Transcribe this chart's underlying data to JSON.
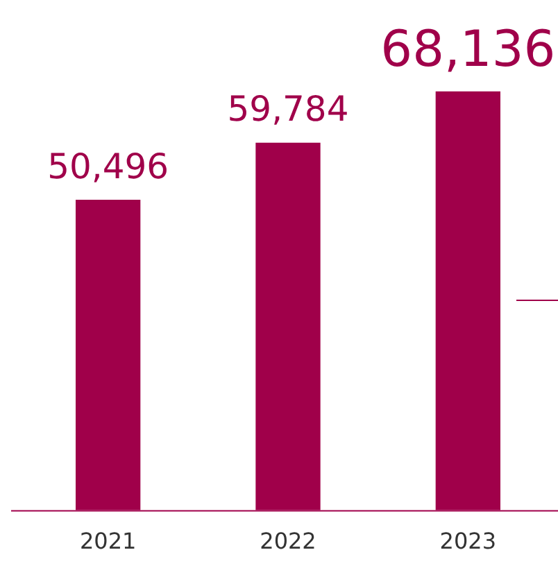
{
  "chart_data": {
    "type": "bar",
    "categories": [
      "2021",
      "2022",
      "2023"
    ],
    "values": [
      50496,
      59784,
      68136
    ],
    "color": "#a0004a",
    "value_labels": [
      "50,496",
      "59,784",
      "68,136"
    ],
    "tick_labels": "x",
    "grid": false,
    "legend": false
  }
}
